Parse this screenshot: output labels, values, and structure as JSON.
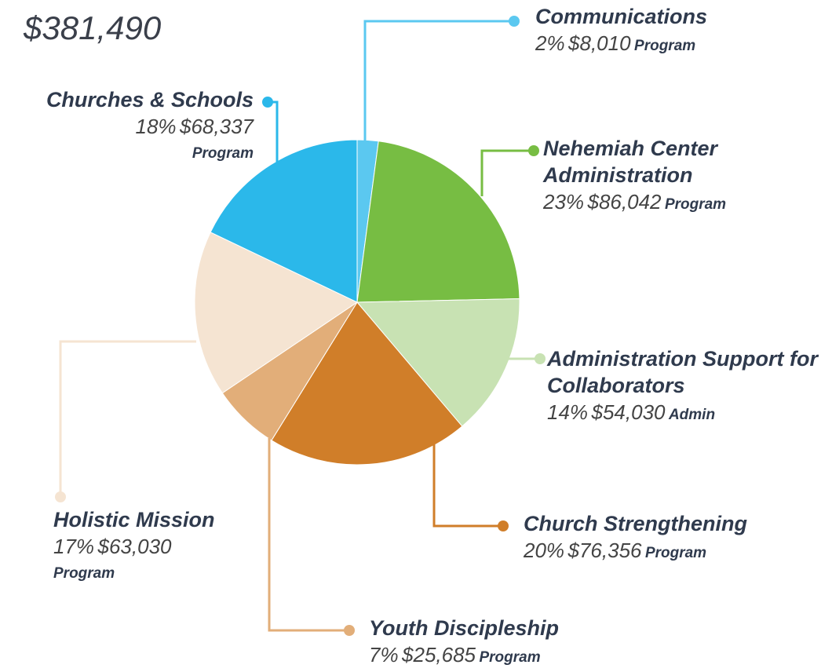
{
  "chart_data": {
    "type": "pie",
    "total": "$381,490",
    "categories": [
      "Communications",
      "Nehemiah Center Administration",
      "Administration Support for Collaborators",
      "Church Strengthening",
      "Youth Discipleship",
      "Holistic Mission",
      "Churches & Schools"
    ],
    "values": [
      8010,
      86042,
      54030,
      76356,
      25685,
      63030,
      68337
    ],
    "value_labels": [
      "$8,010",
      "$86,042",
      "$54,030",
      "$76,356",
      "$25,685",
      "$63,030",
      "$68,337"
    ],
    "percent_labels": [
      "2%",
      "23%",
      "14%",
      "20%",
      "7%",
      "17%",
      "18%"
    ],
    "kinds": [
      "Program",
      "Program",
      "Admin",
      "Program",
      "Program",
      "Program",
      "Program"
    ],
    "colors": [
      "#5bc8f0",
      "#77bd43",
      "#c8e2b3",
      "#d07e29",
      "#e2ae79",
      "#f5e4d2",
      "#2bb8ea"
    ]
  }
}
